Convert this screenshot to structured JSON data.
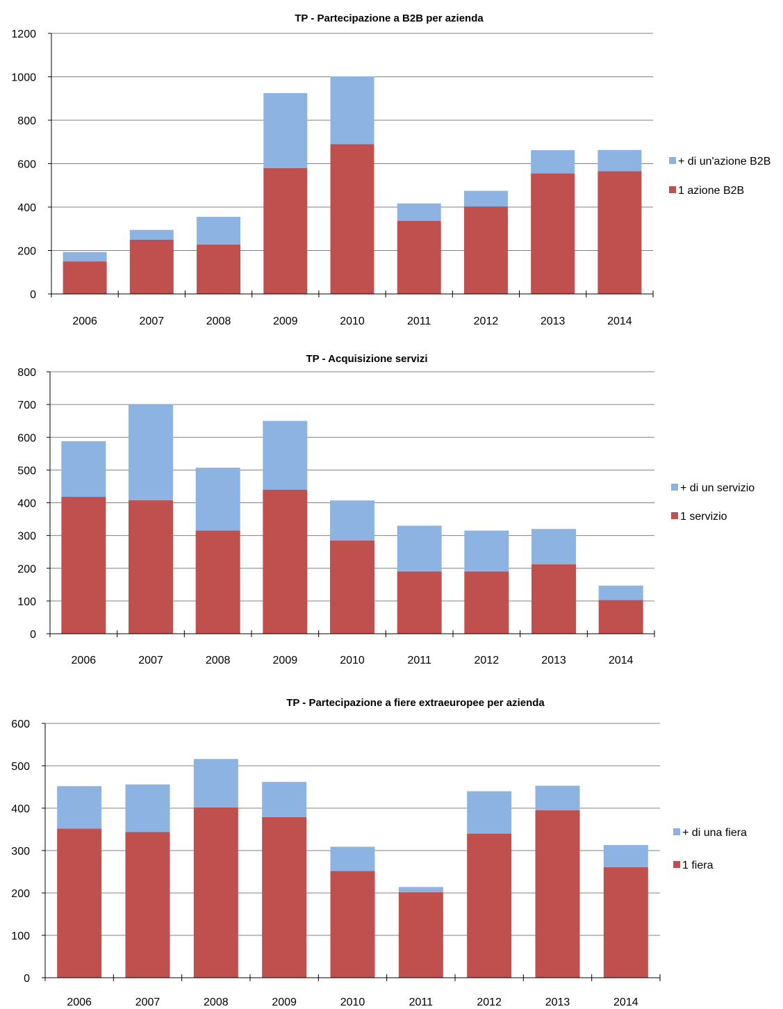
{
  "colors": {
    "top": "#8DB3E2",
    "bottom": "#C0504D",
    "grid": "#808080",
    "axis": "#000000"
  },
  "chart_data": [
    {
      "type": "bar",
      "stacked": true,
      "title": "TP - Partecipazione a B2B per azienda",
      "categories": [
        "2006",
        "2007",
        "2008",
        "2009",
        "2010",
        "2011",
        "2012",
        "2013",
        "2014"
      ],
      "ylim": [
        0,
        1200
      ],
      "yticks": [
        0,
        200,
        400,
        600,
        800,
        1000,
        1200
      ],
      "grid": true,
      "legend_position": "right",
      "series": [
        {
          "name": "1 azione B2B",
          "values": [
            150,
            250,
            228,
            580,
            690,
            337,
            403,
            555,
            565
          ]
        },
        {
          "name": "+ di un'azione B2B",
          "values": [
            43,
            45,
            127,
            345,
            312,
            80,
            72,
            107,
            98
          ]
        }
      ]
    },
    {
      "type": "bar",
      "stacked": true,
      "title": "TP - Acquisizione  servizi",
      "categories": [
        "2006",
        "2007",
        "2008",
        "2009",
        "2010",
        "2011",
        "2012",
        "2013",
        "2014"
      ],
      "ylim": [
        0,
        800
      ],
      "yticks": [
        0,
        100,
        200,
        300,
        400,
        500,
        600,
        700,
        800
      ],
      "grid": true,
      "legend_position": "right",
      "series": [
        {
          "name": "1 servizio",
          "values": [
            418,
            408,
            315,
            440,
            285,
            190,
            190,
            212,
            103
          ]
        },
        {
          "name": "+ di un servizio",
          "values": [
            170,
            292,
            192,
            210,
            122,
            140,
            125,
            108,
            44
          ]
        }
      ]
    },
    {
      "type": "bar",
      "stacked": true,
      "title": "TP - Partecipazione a fiere extraeuropee per azienda",
      "categories": [
        "2006",
        "2007",
        "2008",
        "2009",
        "2010",
        "2011",
        "2012",
        "2013",
        "2014"
      ],
      "ylim": [
        0,
        600
      ],
      "yticks": [
        0,
        100,
        200,
        300,
        400,
        500,
        600
      ],
      "grid": true,
      "legend_position": "right",
      "series": [
        {
          "name": "1 fiera",
          "values": [
            352,
            344,
            402,
            379,
            252,
            202,
            340,
            395,
            261
          ]
        },
        {
          "name": "+ di una fiera",
          "values": [
            100,
            112,
            114,
            83,
            57,
            12,
            100,
            58,
            52
          ]
        }
      ]
    }
  ]
}
